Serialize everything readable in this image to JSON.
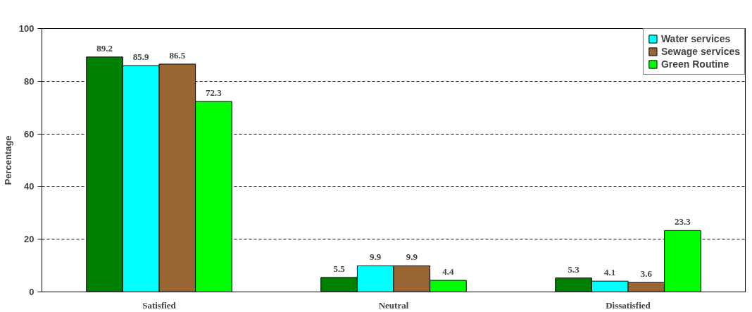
{
  "chart_data": {
    "type": "bar",
    "ylabel": "Percentage",
    "categories": [
      "Satisfied",
      "Neutral",
      "Dissatisfied"
    ],
    "series": [
      {
        "color": "#008000",
        "values": [
          89.2,
          5.5,
          5.3
        ]
      },
      {
        "name": "Water services",
        "color": "#00ffff",
        "values": [
          85.9,
          9.9,
          4.1
        ]
      },
      {
        "name": "Sewage services",
        "color": "#996633",
        "values": [
          86.5,
          9.9,
          3.6
        ]
      },
      {
        "name": "Green Routine",
        "color": "#00ff00",
        "values": [
          72.3,
          4.4,
          23.3
        ]
      }
    ],
    "ylim": [
      0,
      100
    ],
    "yticks": [
      0,
      20,
      40,
      60,
      80,
      100
    ],
    "grid": "y",
    "legend": "top right",
    "data_labels": true
  }
}
